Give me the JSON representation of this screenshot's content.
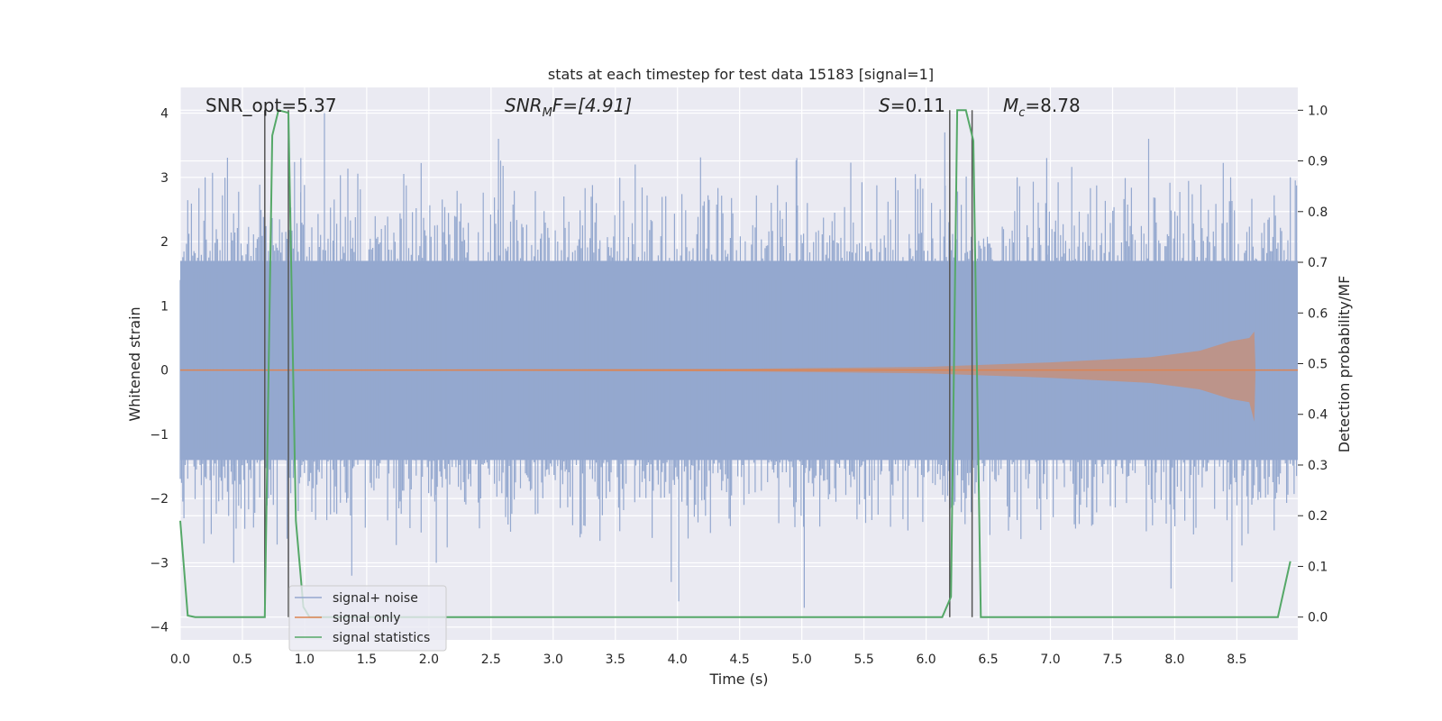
{
  "chart_data": {
    "type": "line",
    "title": "stats at each timestep for test data 15183 [signal=1]",
    "xlabel": "Time (s)",
    "ylabel_left": "Whitened strain",
    "ylabel_right": "Detection probability/MF",
    "xlim": [
      0.0,
      8.99
    ],
    "ylim_left": [
      -4.2,
      4.4
    ],
    "ylim_right": [
      -0.045,
      1.045
    ],
    "x_ticks": [
      "0.0",
      "0.5",
      "1.0",
      "1.5",
      "2.0",
      "2.5",
      "3.0",
      "3.5",
      "4.0",
      "4.5",
      "5.0",
      "5.5",
      "6.0",
      "6.5",
      "7.0",
      "7.5",
      "8.0",
      "8.5"
    ],
    "y_ticks_left": [
      "4",
      "3",
      "2",
      "1",
      "0",
      "−1",
      "−2",
      "−3",
      "−4"
    ],
    "y_ticks_right": [
      "1.0",
      "0.9",
      "0.8",
      "0.7",
      "0.6",
      "0.5",
      "0.4",
      "0.3",
      "0.2",
      "0.1",
      "0.0"
    ],
    "grid": true,
    "legend_position": "bottom-left",
    "annotations": {
      "snr_opt": "SNR_opt=5.37",
      "snr_mf_main": "SNR",
      "snr_mf_sub": "M",
      "snr_mf_tail": "F=[4.91]",
      "s_main": "S",
      "s_tail": "=0.11",
      "mc_main": "M",
      "mc_sub": "c",
      "mc_tail": "=8.78"
    },
    "series": [
      {
        "name": "signal+ noise",
        "color": "#94a8cf",
        "approx_envelope": {
          "typical_range": [
            -1.4,
            1.7
          ],
          "spikes_up": [
            [
              0.2,
              3.0
            ],
            [
              0.68,
              2.6
            ],
            [
              0.97,
              3.3
            ],
            [
              1.16,
              4.0
            ],
            [
              2.56,
              3.6
            ],
            [
              3.66,
              3.2
            ],
            [
              4.96,
              3.3
            ],
            [
              6.15,
              3.7
            ],
            [
              6.97,
              3.3
            ],
            [
              7.79,
              3.6
            ],
            [
              8.45,
              3.0
            ],
            [
              8.93,
              3.0
            ]
          ],
          "spikes_down": [
            [
              0.43,
              -3.0
            ],
            [
              0.87,
              -3.0
            ],
            [
              1.38,
              -3.2
            ],
            [
              2.06,
              -3.0
            ],
            [
              3.95,
              -3.3
            ],
            [
              4.01,
              -3.6
            ],
            [
              5.02,
              -3.7
            ],
            [
              7.97,
              -3.4
            ],
            [
              8.46,
              -3.3
            ]
          ]
        }
      },
      {
        "name": "signal only",
        "color": "#dd8452",
        "approx_envelope": {
          "description_points": [
            [
              0.0,
              0.0
            ],
            [
              4.5,
              0.02
            ],
            [
              6.0,
              0.05
            ],
            [
              7.0,
              0.12
            ],
            [
              7.8,
              0.2
            ],
            [
              8.2,
              0.3
            ],
            [
              8.45,
              0.45
            ],
            [
              8.6,
              0.5
            ],
            [
              8.64,
              0.6
            ],
            [
              8.65,
              0.0
            ],
            [
              8.99,
              0.0
            ]
          ],
          "min_value": -0.8
        }
      },
      {
        "name": "signal statistics",
        "color": "#55a868",
        "points": [
          [
            0.0,
            0.19
          ],
          [
            0.06,
            0.003
          ],
          [
            0.12,
            0.0
          ],
          [
            0.68,
            0.0
          ],
          [
            0.74,
            0.95
          ],
          [
            0.79,
            1.0
          ],
          [
            0.87,
            0.995
          ],
          [
            0.93,
            0.19
          ],
          [
            0.99,
            0.02
          ],
          [
            1.04,
            0.0
          ],
          [
            6.13,
            0.0
          ],
          [
            6.2,
            0.04
          ],
          [
            6.25,
            1.0
          ],
          [
            6.32,
            1.0
          ],
          [
            6.38,
            0.94
          ],
          [
            6.44,
            0.0
          ],
          [
            8.83,
            0.0
          ],
          [
            8.93,
            0.11
          ]
        ]
      }
    ],
    "vertical_markers": [
      0.68,
      0.87,
      6.19,
      6.37
    ]
  }
}
